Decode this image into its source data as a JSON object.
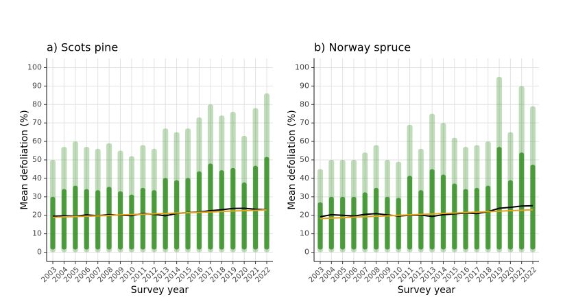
{
  "chart_data": [
    {
      "type": "line",
      "title": "a) Scots pine",
      "xlabel": "Survey year",
      "ylabel": "Mean defoliation (%)",
      "categories": [
        "2003",
        "2004",
        "2005",
        "2006",
        "2007",
        "2008",
        "2009",
        "2010",
        "2011",
        "2012",
        "2013",
        "2014",
        "2015",
        "2016",
        "2017",
        "2018",
        "2019",
        "2020",
        "2021",
        "2022"
      ],
      "ylim": [
        -5,
        105
      ],
      "yticks": [
        0,
        10,
        20,
        30,
        40,
        50,
        60,
        70,
        80,
        90,
        100
      ],
      "grid": true,
      "spread": {
        "color": "#2e8b1e",
        "max": [
          50,
          57,
          60,
          57,
          56,
          59,
          55,
          52,
          58,
          56,
          67,
          65,
          67,
          73,
          80,
          74,
          76,
          63,
          78,
          86
        ]
      },
      "series": [
        {
          "color": "#000000",
          "values": [
            19.5,
            19.7,
            19.5,
            20.2,
            19.8,
            20.3,
            20.0,
            19.8,
            21.0,
            20.5,
            19.7,
            21.0,
            21.5,
            21.8,
            22.5,
            23.0,
            23.7,
            23.8,
            23.3,
            23.0
          ]
        },
        {
          "color": "#e3a41c",
          "values": [
            18.9,
            19.1,
            19.3,
            19.5,
            19.7,
            19.9,
            20.2,
            20.4,
            20.6,
            20.8,
            21.0,
            21.2,
            21.4,
            21.6,
            21.8,
            22.1,
            22.3,
            22.5,
            22.7,
            22.9
          ]
        }
      ]
    },
    {
      "type": "line",
      "title": "b) Norway spruce",
      "xlabel": "Survey year",
      "ylabel": "Mean defoliation (%)",
      "categories": [
        "2003",
        "2004",
        "2005",
        "2006",
        "2007",
        "2008",
        "2009",
        "2010",
        "2011",
        "2012",
        "2013",
        "2014",
        "2015",
        "2016",
        "2017",
        "2018",
        "2019",
        "2020",
        "2021",
        "2022"
      ],
      "ylim": [
        -5,
        105
      ],
      "yticks": [
        0,
        10,
        20,
        30,
        40,
        50,
        60,
        70,
        80,
        90,
        100
      ],
      "grid": true,
      "spread": {
        "color": "#2e8b1e",
        "max": [
          45,
          50,
          50,
          50,
          54,
          58,
          50,
          49,
          69,
          56,
          75,
          70,
          62,
          57,
          58,
          60,
          95,
          65,
          90,
          79
        ]
      },
      "series": [
        {
          "color": "#000000",
          "values": [
            19.2,
            20.3,
            20.0,
            19.6,
            20.5,
            20.9,
            20.2,
            19.6,
            20.0,
            20.1,
            19.4,
            20.3,
            20.8,
            21.2,
            20.9,
            22.0,
            23.8,
            24.3,
            25.0,
            25.2
          ]
        },
        {
          "color": "#e3a41c",
          "values": [
            18.2,
            18.5,
            18.7,
            19.0,
            19.2,
            19.5,
            19.7,
            20.0,
            20.2,
            20.5,
            20.7,
            21.0,
            21.2,
            21.5,
            21.7,
            22.0,
            22.2,
            22.5,
            22.7,
            23.0
          ]
        }
      ]
    }
  ]
}
